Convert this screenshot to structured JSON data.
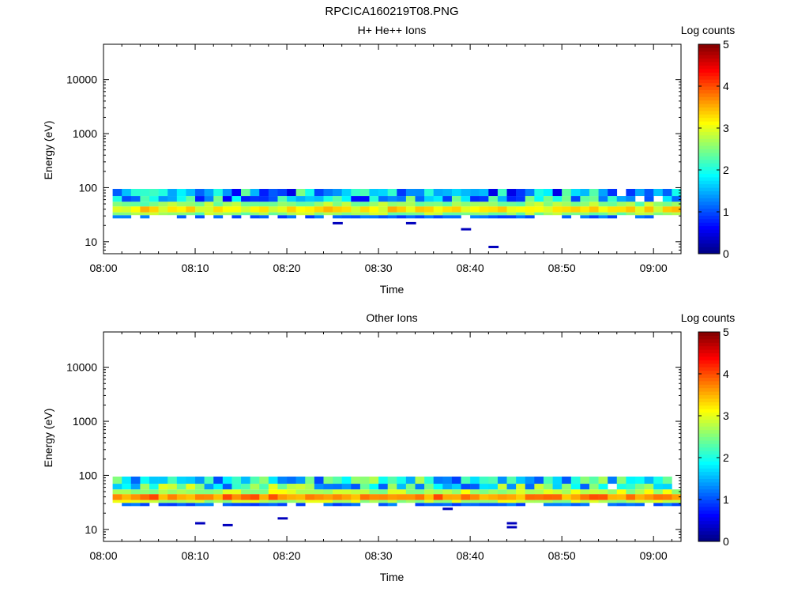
{
  "title": "RPCICA160219T08.PNG",
  "chart_data": [
    {
      "type": "heatmap",
      "title": "H+ He++ Ions",
      "xlabel": "Time",
      "ylabel": "Energy (eV)",
      "x_ticks": [
        "08:00",
        "08:10",
        "08:20",
        "08:30",
        "08:40",
        "08:50",
        "09:00"
      ],
      "y_ticks": [
        "10",
        "100",
        "1000",
        "10000"
      ],
      "y_scale": "log",
      "x_range": [
        "08:00",
        "09:03"
      ],
      "y_range": [
        6,
        45000
      ],
      "colorbar": {
        "label": "Log counts",
        "ticks": [
          "0",
          "1",
          "2",
          "3",
          "4",
          "5"
        ],
        "range": [
          0,
          5
        ],
        "colormap": "jet"
      },
      "bands": [
        {
          "emin": 27,
          "emax": 31,
          "level": 1.0,
          "note": "lower edge"
        },
        {
          "emin": 31,
          "emax": 35,
          "level": 2.6
        },
        {
          "emin": 35,
          "emax": 45,
          "level": 3.2
        },
        {
          "emin": 45,
          "emax": 55,
          "level": 2.6
        },
        {
          "emin": 55,
          "emax": 70,
          "level": 1.6
        },
        {
          "emin": 70,
          "emax": 95,
          "level": 1.5
        }
      ],
      "isolated_points": [
        {
          "time": "08:25",
          "energy": 22,
          "level": 0.3
        },
        {
          "time": "08:33",
          "energy": 22,
          "level": 0.3
        },
        {
          "time": "08:39",
          "energy": 17,
          "level": 0.3
        },
        {
          "time": "08:42",
          "energy": 8,
          "level": 0.3
        }
      ]
    },
    {
      "type": "heatmap",
      "title": "Other Ions",
      "xlabel": "Time",
      "ylabel": "Energy (eV)",
      "x_ticks": [
        "08:00",
        "08:10",
        "08:20",
        "08:30",
        "08:40",
        "08:50",
        "09:00"
      ],
      "y_ticks": [
        "10",
        "100",
        "1000",
        "10000"
      ],
      "y_scale": "log",
      "x_range": [
        "08:00",
        "09:03"
      ],
      "y_range": [
        6,
        45000
      ],
      "colorbar": {
        "label": "Log counts",
        "ticks": [
          "0",
          "1",
          "2",
          "3",
          "4",
          "5"
        ],
        "range": [
          0,
          5
        ],
        "colormap": "jet"
      },
      "bands": [
        {
          "emin": 27,
          "emax": 31,
          "level": 1.0
        },
        {
          "emin": 31,
          "emax": 35,
          "level": 2.8
        },
        {
          "emin": 35,
          "emax": 45,
          "level": 3.7
        },
        {
          "emin": 45,
          "emax": 55,
          "level": 2.8
        },
        {
          "emin": 55,
          "emax": 70,
          "level": 2.0
        },
        {
          "emin": 70,
          "emax": 95,
          "level": 1.8
        }
      ],
      "isolated_points": [
        {
          "time": "08:10",
          "energy": 13,
          "level": 0.3
        },
        {
          "time": "08:13",
          "energy": 12,
          "level": 0.3
        },
        {
          "time": "08:19",
          "energy": 16,
          "level": 0.3
        },
        {
          "time": "08:37",
          "energy": 24,
          "level": 0.3
        },
        {
          "time": "08:44",
          "energy": 13,
          "level": 0.3
        },
        {
          "time": "08:44",
          "energy": 11,
          "level": 0.3
        }
      ]
    }
  ]
}
